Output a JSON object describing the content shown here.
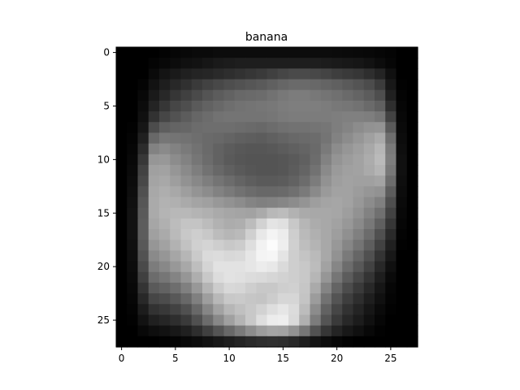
{
  "chart_data": {
    "type": "heatmap",
    "title": "banana",
    "xlabel": "",
    "ylabel": "",
    "colormap": "gray",
    "color_low": "#000000",
    "color_high": "#ffffff",
    "grid": false,
    "xlim": [
      -0.5,
      27.5
    ],
    "ylim": [
      27.5,
      -0.5
    ],
    "x_ticks": [
      0,
      5,
      10,
      15,
      20,
      25
    ],
    "y_ticks": [
      0,
      5,
      10,
      15,
      20,
      25
    ],
    "x_tick_labels": [
      "0",
      "5",
      "10",
      "15",
      "20",
      "25"
    ],
    "y_tick_labels": [
      "0",
      "5",
      "10",
      "15",
      "20",
      "25"
    ],
    "matrix": [
      [
        0,
        0,
        0,
        0,
        3,
        6,
        8,
        10,
        10,
        12,
        12,
        12,
        12,
        12,
        12,
        12,
        12,
        12,
        12,
        12,
        11,
        10,
        9,
        8,
        6,
        4,
        0,
        0
      ],
      [
        0,
        0,
        0,
        4,
        8,
        12,
        16,
        18,
        22,
        26,
        28,
        30,
        30,
        30,
        30,
        30,
        30,
        30,
        30,
        28,
        26,
        24,
        22,
        18,
        12,
        6,
        0,
        0
      ],
      [
        0,
        0,
        0,
        10,
        20,
        26,
        32,
        36,
        38,
        42,
        46,
        50,
        54,
        58,
        64,
        70,
        74,
        74,
        72,
        68,
        62,
        58,
        54,
        46,
        36,
        16,
        0,
        0
      ],
      [
        0,
        0,
        4,
        18,
        30,
        40,
        48,
        58,
        66,
        72,
        78,
        82,
        86,
        90,
        96,
        102,
        106,
        106,
        104,
        100,
        96,
        90,
        84,
        76,
        60,
        24,
        2,
        0
      ],
      [
        0,
        0,
        8,
        26,
        40,
        54,
        64,
        74,
        84,
        92,
        98,
        104,
        106,
        108,
        114,
        120,
        124,
        124,
        120,
        116,
        112,
        106,
        100,
        92,
        78,
        32,
        4,
        0
      ],
      [
        0,
        0,
        12,
        36,
        54,
        70,
        78,
        90,
        98,
        104,
        110,
        114,
        116,
        118,
        120,
        124,
        126,
        126,
        126,
        124,
        120,
        118,
        114,
        106,
        96,
        46,
        6,
        0
      ],
      [
        0,
        0,
        16,
        50,
        70,
        82,
        92,
        102,
        108,
        114,
        116,
        116,
        116,
        116,
        118,
        122,
        124,
        124,
        124,
        124,
        126,
        128,
        128,
        126,
        118,
        66,
        8,
        0
      ],
      [
        0,
        2,
        22,
        76,
        94,
        100,
        102,
        108,
        110,
        110,
        110,
        108,
        106,
        104,
        108,
        112,
        114,
        114,
        116,
        118,
        126,
        132,
        140,
        146,
        148,
        90,
        10,
        0
      ],
      [
        0,
        4,
        32,
        104,
        118,
        116,
        114,
        110,
        106,
        104,
        100,
        96,
        94,
        92,
        96,
        100,
        104,
        106,
        108,
        116,
        130,
        140,
        150,
        160,
        170,
        110,
        12,
        0
      ],
      [
        0,
        6,
        44,
        130,
        138,
        130,
        122,
        114,
        106,
        98,
        92,
        88,
        86,
        86,
        88,
        92,
        96,
        100,
        106,
        122,
        140,
        150,
        158,
        168,
        182,
        122,
        14,
        0
      ],
      [
        0,
        8,
        56,
        150,
        152,
        140,
        130,
        118,
        108,
        98,
        90,
        86,
        84,
        84,
        84,
        86,
        90,
        96,
        108,
        130,
        148,
        156,
        162,
        172,
        186,
        126,
        16,
        0
      ],
      [
        0,
        10,
        66,
        160,
        162,
        150,
        138,
        126,
        114,
        104,
        96,
        90,
        86,
        84,
        84,
        86,
        92,
        100,
        114,
        138,
        154,
        160,
        162,
        170,
        180,
        120,
        16,
        0
      ],
      [
        0,
        12,
        72,
        164,
        168,
        158,
        146,
        136,
        126,
        116,
        108,
        100,
        94,
        90,
        90,
        92,
        98,
        108,
        124,
        146,
        158,
        162,
        160,
        160,
        164,
        108,
        14,
        0
      ],
      [
        0,
        14,
        80,
        168,
        174,
        168,
        158,
        148,
        140,
        130,
        122,
        114,
        108,
        104,
        104,
        106,
        112,
        122,
        138,
        154,
        162,
        162,
        156,
        150,
        146,
        92,
        12,
        0
      ],
      [
        0,
        16,
        86,
        170,
        178,
        176,
        170,
        164,
        160,
        152,
        146,
        140,
        132,
        128,
        130,
        134,
        140,
        148,
        158,
        164,
        166,
        162,
        152,
        140,
        128,
        78,
        10,
        0
      ],
      [
        0,
        18,
        90,
        170,
        180,
        184,
        184,
        180,
        176,
        170,
        166,
        164,
        162,
        170,
        184,
        188,
        178,
        170,
        168,
        168,
        166,
        158,
        146,
        130,
        112,
        66,
        8,
        0
      ],
      [
        0,
        18,
        92,
        166,
        176,
        188,
        196,
        196,
        188,
        178,
        172,
        174,
        188,
        210,
        228,
        224,
        200,
        182,
        172,
        168,
        162,
        152,
        138,
        120,
        96,
        54,
        6,
        0
      ],
      [
        0,
        18,
        92,
        160,
        170,
        186,
        200,
        206,
        200,
        188,
        182,
        186,
        208,
        232,
        244,
        236,
        206,
        186,
        176,
        168,
        158,
        144,
        128,
        108,
        80,
        42,
        4,
        0
      ],
      [
        0,
        16,
        88,
        150,
        162,
        178,
        194,
        208,
        212,
        206,
        200,
        204,
        222,
        242,
        252,
        238,
        208,
        190,
        180,
        168,
        152,
        134,
        116,
        94,
        66,
        32,
        2,
        0
      ],
      [
        0,
        14,
        82,
        138,
        150,
        166,
        182,
        202,
        218,
        220,
        216,
        218,
        230,
        244,
        246,
        228,
        206,
        196,
        186,
        168,
        146,
        122,
        102,
        80,
        52,
        24,
        0,
        0
      ],
      [
        0,
        12,
        74,
        124,
        136,
        152,
        168,
        190,
        212,
        226,
        226,
        226,
        230,
        236,
        232,
        218,
        206,
        200,
        188,
        162,
        134,
        108,
        88,
        66,
        40,
        16,
        0,
        0
      ],
      [
        0,
        10,
        64,
        108,
        118,
        132,
        150,
        174,
        200,
        220,
        226,
        224,
        220,
        218,
        214,
        210,
        206,
        200,
        182,
        150,
        118,
        92,
        72,
        52,
        30,
        10,
        0,
        0
      ],
      [
        0,
        8,
        52,
        90,
        98,
        110,
        128,
        152,
        180,
        204,
        216,
        214,
        206,
        200,
        200,
        206,
        208,
        198,
        170,
        132,
        100,
        76,
        58,
        40,
        22,
        6,
        0,
        0
      ],
      [
        0,
        6,
        40,
        70,
        76,
        88,
        104,
        128,
        158,
        184,
        200,
        202,
        198,
        196,
        204,
        214,
        214,
        196,
        156,
        114,
        84,
        62,
        46,
        30,
        16,
        4,
        0,
        0
      ],
      [
        0,
        4,
        28,
        50,
        56,
        66,
        80,
        104,
        134,
        162,
        182,
        192,
        200,
        210,
        222,
        230,
        220,
        188,
        140,
        98,
        70,
        50,
        36,
        22,
        10,
        2,
        0,
        0
      ],
      [
        0,
        2,
        18,
        32,
        38,
        46,
        58,
        80,
        108,
        136,
        160,
        180,
        200,
        222,
        236,
        238,
        218,
        176,
        124,
        84,
        58,
        40,
        28,
        16,
        6,
        0,
        0,
        0
      ],
      [
        0,
        0,
        8,
        14,
        18,
        24,
        32,
        46,
        64,
        84,
        104,
        122,
        140,
        156,
        164,
        162,
        146,
        118,
        82,
        54,
        36,
        24,
        16,
        8,
        2,
        0,
        0,
        0
      ],
      [
        0,
        0,
        0,
        0,
        2,
        4,
        8,
        12,
        18,
        24,
        30,
        36,
        42,
        46,
        48,
        46,
        40,
        30,
        20,
        12,
        6,
        2,
        0,
        0,
        0,
        0,
        0,
        0
      ]
    ]
  }
}
